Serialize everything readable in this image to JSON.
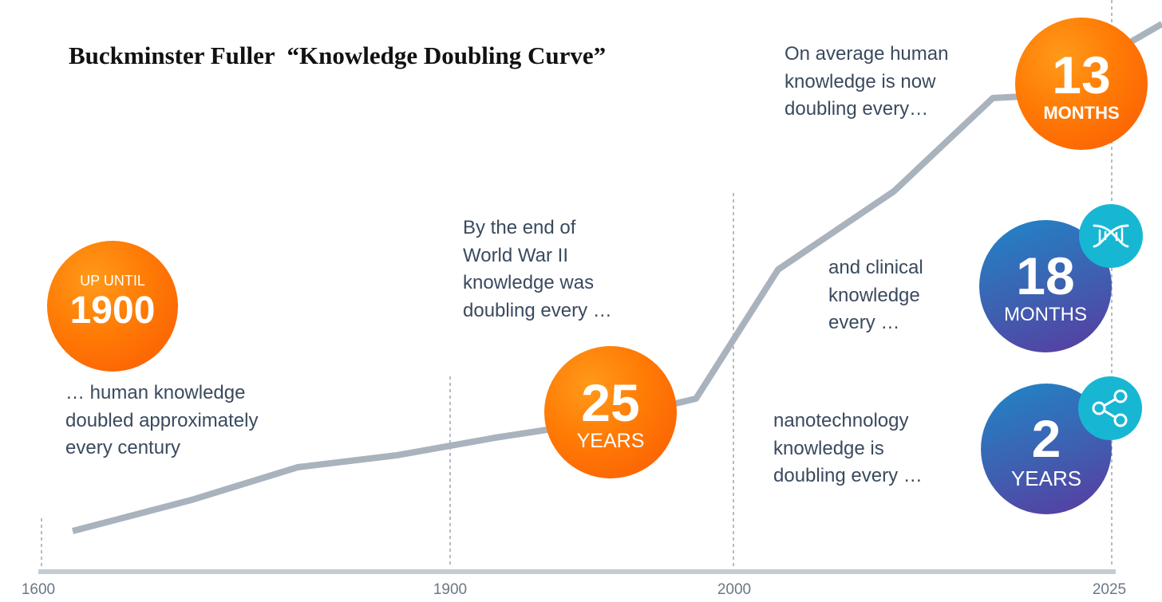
{
  "title": "Buckminster Fuller  “Knowledge Doubling Curve”",
  "notes": {
    "century": "… human knowledge\ndoubled approximately\nevery century",
    "ww2": "By the end of\nWorld War II\nknowledge was\ndoubling every …",
    "average": "On average human\nknowledge is now\ndoubling every…",
    "clinical": "and clinical\nknowledge\nevery …",
    "nano": "nanotechnology\nknowledge is\ndoubling every …"
  },
  "circles": {
    "c1900": {
      "top": "UP UNTIL",
      "big": "1900"
    },
    "c25": {
      "big": "25",
      "unit": "YEARS"
    },
    "c13": {
      "big": "13",
      "unit": "MONTHS"
    },
    "c18": {
      "big": "18",
      "unit": "MONTHS"
    },
    "c2": {
      "big": "2",
      "unit": "YEARS"
    }
  },
  "icons": {
    "clinical": "dna-icon",
    "nano": "share-icon"
  },
  "colors": {
    "line": "#a9b3bd",
    "axis": "#c4ccd3",
    "text": "#3a4a5e",
    "orange": "#fb6a08",
    "badge": "#17b7d3"
  },
  "chart_data": {
    "type": "line",
    "title": "Buckminster Fuller  “Knowledge Doubling Curve”",
    "xlabel": "",
    "ylabel": "",
    "x_ticks": [
      "1600",
      "1900",
      "2000",
      "2025"
    ],
    "x_scale": "piecewise",
    "grid": "vertical dashed lines at 1600, 1900, 2000, 2025",
    "legend": "none"
  }
}
